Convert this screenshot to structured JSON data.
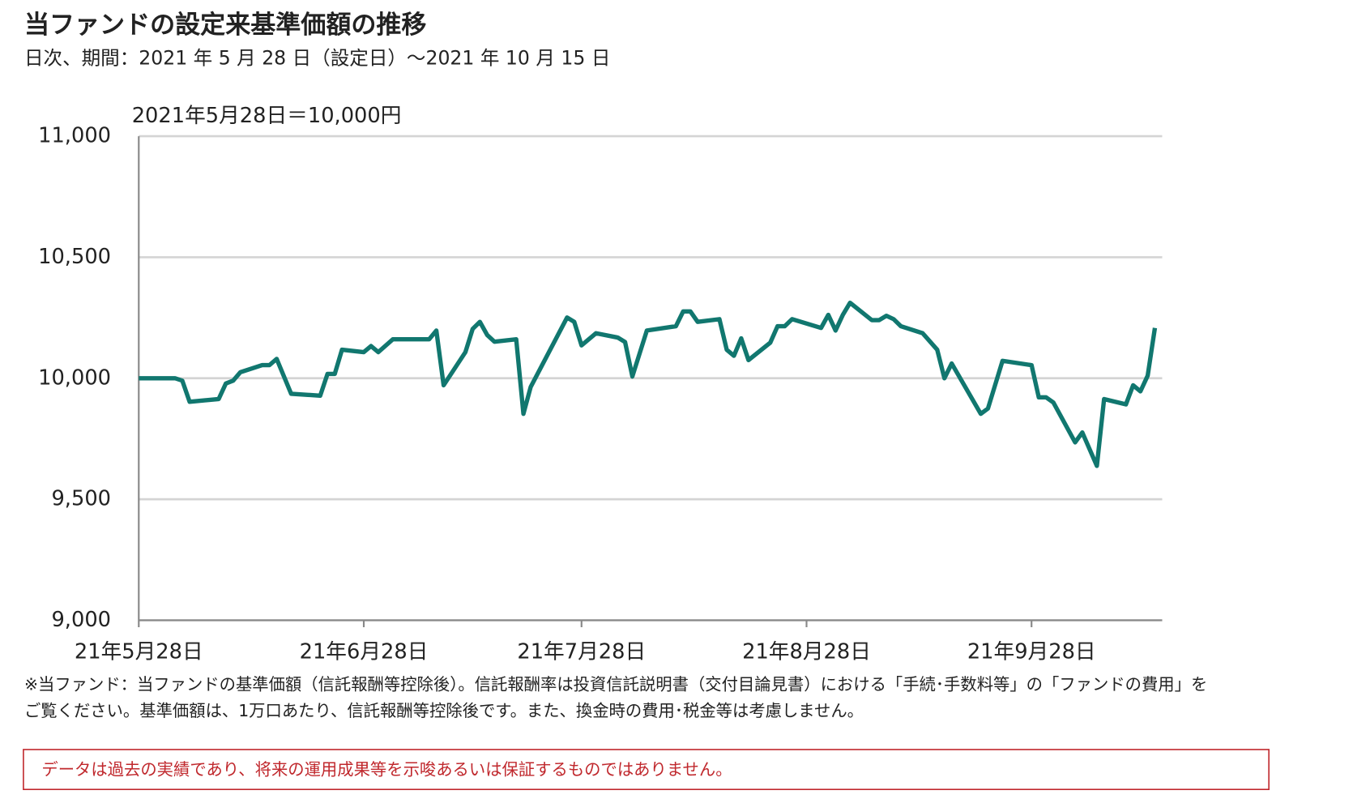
{
  "chart_data": {
    "type": "line",
    "title": "当ファンドの設定来基準価額の推移",
    "subtitle": "日次、期間：2021 年 5 月 28 日（設定日）～2021 年 10 月 15 日",
    "annotation": "2021年5月28日＝10,000円",
    "notes": [
      "※当ファンド：当ファンドの基準価額（信託報酬等控除後）。信託報酬率は投資信託説明書（交付目論見書）における「手続･手数料等」の「ファンドの費用」を",
      "ご覧ください。基準価額は、1万口あたり、信託報酬等控除後です。また、換金時の費用･税金等は考慮しません。"
    ],
    "disclaimer": "データは過去の実績であり、将来の運用成果等を示唆あるいは保証するものではありません。",
    "color": "#11776f",
    "x": [
      "2021-05-28",
      "2021-06-02",
      "2021-06-03",
      "2021-06-04",
      "2021-06-08",
      "2021-06-09",
      "2021-06-10",
      "2021-06-11",
      "2021-06-14",
      "2021-06-15",
      "2021-06-16",
      "2021-06-18",
      "2021-06-22",
      "2021-06-23",
      "2021-06-24",
      "2021-06-25",
      "2021-06-28",
      "2021-06-29",
      "2021-06-30",
      "2021-07-02",
      "2021-07-07",
      "2021-07-08",
      "2021-07-09",
      "2021-07-12",
      "2021-07-13",
      "2021-07-14",
      "2021-07-15",
      "2021-07-16",
      "2021-07-19",
      "2021-07-20",
      "2021-07-21",
      "2021-07-26",
      "2021-07-27",
      "2021-07-28",
      "2021-07-30",
      "2021-08-02",
      "2021-08-03",
      "2021-08-04",
      "2021-08-06",
      "2021-08-10",
      "2021-08-11",
      "2021-08-12",
      "2021-08-13",
      "2021-08-16",
      "2021-08-17",
      "2021-08-18",
      "2021-08-19",
      "2021-08-20",
      "2021-08-23",
      "2021-08-24",
      "2021-08-25",
      "2021-08-26",
      "2021-08-30",
      "2021-08-31",
      "2021-09-01",
      "2021-09-02",
      "2021-09-03",
      "2021-09-06",
      "2021-09-07",
      "2021-09-08",
      "2021-09-09",
      "2021-09-10",
      "2021-09-13",
      "2021-09-15",
      "2021-09-16",
      "2021-09-17",
      "2021-09-21",
      "2021-09-22",
      "2021-09-24",
      "2021-09-28",
      "2021-09-29",
      "2021-09-30",
      "2021-10-01",
      "2021-10-04",
      "2021-10-05",
      "2021-10-07",
      "2021-10-08",
      "2021-10-11",
      "2021-10-12",
      "2021-10-13",
      "2021-10-14",
      "2021-10-15"
    ],
    "values": [
      10000,
      10000,
      9990,
      9903,
      9914,
      9978,
      9990,
      10025,
      10054,
      10054,
      10080,
      9936,
      9928,
      10018,
      10018,
      10118,
      10108,
      10133,
      10108,
      10161,
      10161,
      10197,
      9971,
      10108,
      10204,
      10233,
      10179,
      10151,
      10161,
      9853,
      9964,
      10251,
      10233,
      10136,
      10186,
      10168,
      10150,
      10007,
      10197,
      10215,
      10276,
      10276,
      10233,
      10244,
      10118,
      10093,
      10165,
      10075,
      10147,
      10215,
      10215,
      10244,
      10208,
      10262,
      10197,
      10262,
      10312,
      10240,
      10240,
      10258,
      10244,
      10215,
      10186,
      10118,
      10000,
      10061,
      9853,
      9875,
      10072,
      10054,
      9921,
      9921,
      9900,
      9735,
      9776,
      9638,
      9914,
      9892,
      9971,
      9946,
      10011,
      10208
    ],
    "xlim": [
      "2021-05-28",
      "2021-10-16"
    ],
    "xticks": [
      {
        "value": "2021-05-28",
        "label": "21年5月28日"
      },
      {
        "value": "2021-06-28",
        "label": "21年6月28日"
      },
      {
        "value": "2021-07-28",
        "label": "21年7月28日"
      },
      {
        "value": "2021-08-28",
        "label": "21年8月28日"
      },
      {
        "value": "2021-09-28",
        "label": "21年9月28日"
      }
    ],
    "ylim": [
      9000,
      11000
    ],
    "yticks": [
      {
        "value": 9000,
        "label": "9,000"
      },
      {
        "value": 9500,
        "label": "9,500"
      },
      {
        "value": 10000,
        "label": "10,000"
      },
      {
        "value": 10500,
        "label": "10,500"
      },
      {
        "value": 11000,
        "label": "11,000"
      }
    ],
    "grid": true
  }
}
